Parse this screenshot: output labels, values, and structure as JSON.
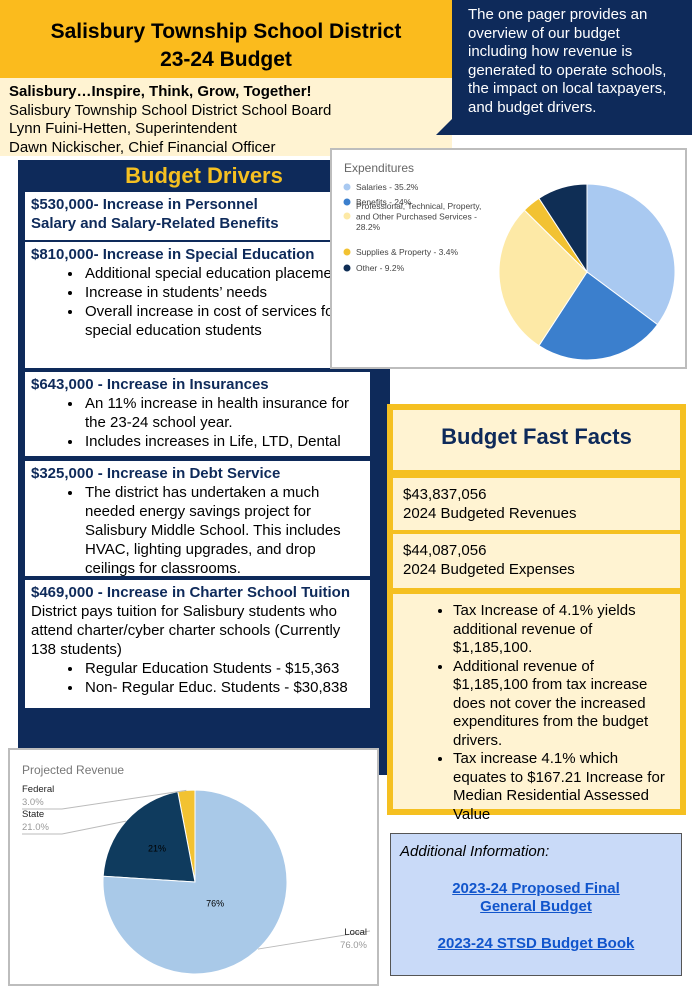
{
  "header": {
    "title_lines": [
      "Salisbury Township School District",
      "23-24 Budget"
    ]
  },
  "intro": "The one pager provides an overview of our budget including how revenue is generated to operate schools, the impact on local taxpayers, and budget drivers.",
  "info_lines": [
    "Salisbury…Inspire, Think, Grow, Together!",
    "Salisbury Township School District School Board",
    "Lynn Fuini-Hetten, Superintendent",
    "Dawn Nickischer, Chief Financial Officer"
  ],
  "budget_drivers": {
    "title": "Budget Drivers",
    "items": [
      {
        "heading_lines": [
          "$530,000- Increase in Personnel",
          "Salary and Salary-Related Benefits"
        ],
        "bullets": []
      },
      {
        "heading_lines": [
          "$810,000-  Increase in Special Education"
        ],
        "bullets": [
          "Additional special education placements",
          "Increase in students’ needs",
          "Overall increase in cost of services for special education students"
        ]
      },
      {
        "heading_lines": [
          "$643,000 - Increase in Insurances"
        ],
        "bullets": [
          "An 11% increase in health insurance for the 23-24 school year.",
          "Includes increases in Life, LTD, Dental"
        ]
      },
      {
        "heading_lines": [
          "$325,000 - Increase in Debt Service"
        ],
        "bullets": [
          "The district has undertaken a much needed energy savings project for Salisbury Middle School. This includes HVAC,  lighting upgrades, and drop ceilings for classrooms."
        ]
      },
      {
        "heading_lines": [
          "$469,000 - Increase in Charter School Tuition"
        ],
        "text": "District pays tuition for Salisbury students who attend charter/cyber charter schools (Currently 138 students)",
        "bullets": [
          "Regular Education Students - $15,363",
          "Non- Regular Educ. Students -  $30,838"
        ]
      }
    ]
  },
  "expenditures_chart": {
    "type": "pie",
    "title": "Expenditures",
    "legend_labels": [
      "Salaries - 35.2%",
      "Benefits - 24%",
      "Professional, Technical, Property, and Other Purchased Services - 28.2%",
      "Supplies & Property - 3.4%",
      "Other - 9.2%"
    ],
    "values": [
      35.2,
      24,
      28.2,
      3.4,
      9.2
    ],
    "colors": [
      "#a9c9f1",
      "#3b7fcd",
      "#fde9a6",
      "#f2c232",
      "#0f2e55"
    ]
  },
  "revenue_chart": {
    "type": "pie",
    "title": "Projected Revenue",
    "categories": [
      "Federal",
      "State",
      "Local"
    ],
    "values": [
      3,
      21,
      76
    ],
    "value_labels": [
      "3.0%",
      "21.0%",
      "76.0%"
    ],
    "inner_labels": [
      null,
      "21%",
      "76%"
    ],
    "colors": [
      "#f2c232",
      "#0f3b5e",
      "#a9c9e8"
    ]
  },
  "fast_facts": {
    "title": "Budget Fast Facts",
    "facts": [
      {
        "amount": "$43,837,056",
        "label": "2024 Budgeted Revenues"
      },
      {
        "amount": "$44,087,056",
        "label": "2024 Budgeted Expenses"
      }
    ],
    "bullets": [
      "Tax Increase of 4.1% yields additional revenue of $1,185,100.",
      "Additional revenue of $1,185,100 from tax increase does not cover the increased expenditures from the budget drivers.",
      "Tax increase 4.1% which equates to $167.21 Increase for Median Residential Assessed Value"
    ]
  },
  "additional_info": {
    "title": "Additional Information:",
    "links": [
      "2023-24 Proposed Final General Budget",
      "2023-24 STSD Budget Book"
    ]
  }
}
